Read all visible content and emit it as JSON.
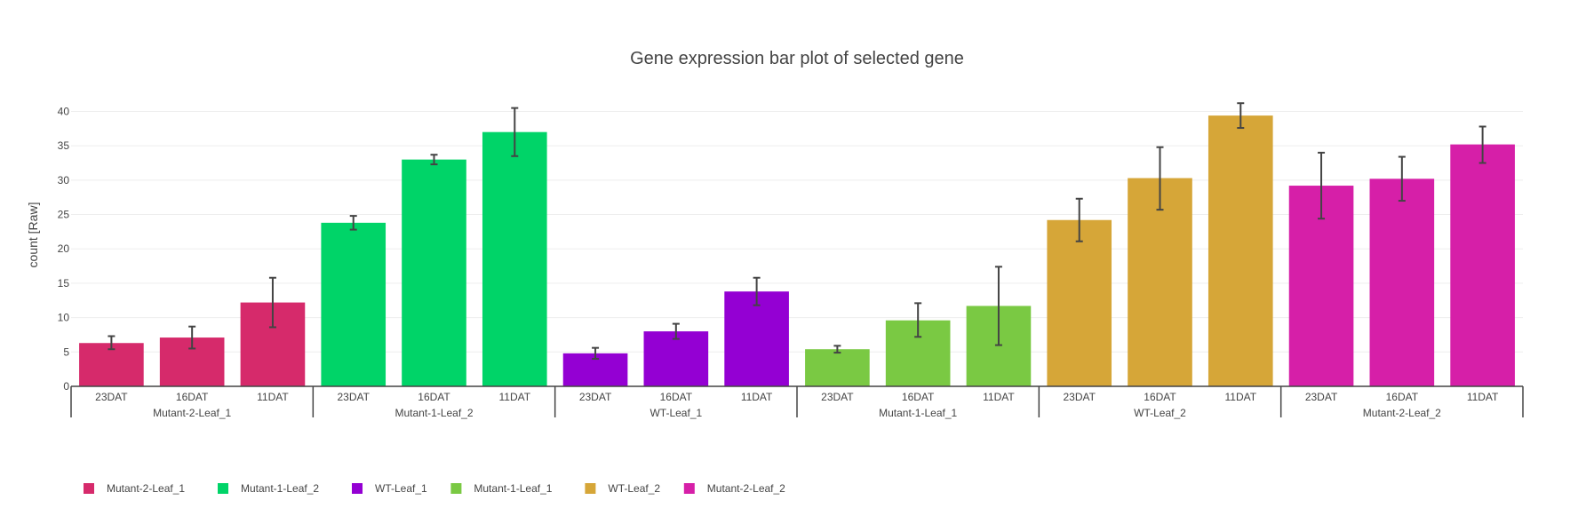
{
  "chart_data": {
    "type": "bar",
    "title": "Gene expression bar plot of selected gene",
    "xlabel": "",
    "ylabel": "count [Raw]",
    "ylim": [
      0,
      42
    ],
    "yticks": [
      0,
      5,
      10,
      15,
      20,
      25,
      30,
      35,
      40
    ],
    "grid": true,
    "legend_position": "bottom-left",
    "series": [
      {
        "name": "Mutant-2-Leaf_1",
        "color": "#d62a6b",
        "categories": [
          "23DAT",
          "16DAT",
          "11DAT"
        ],
        "values": [
          6.3,
          7.1,
          12.2
        ],
        "error_low": [
          5.4,
          5.5,
          8.6
        ],
        "error_high": [
          7.3,
          8.7,
          15.8
        ]
      },
      {
        "name": "Mutant-1-Leaf_2",
        "color": "#00d468",
        "categories": [
          "23DAT",
          "16DAT",
          "11DAT"
        ],
        "values": [
          23.8,
          33.0,
          37.0
        ],
        "error_low": [
          22.8,
          32.3,
          33.5
        ],
        "error_high": [
          24.8,
          33.7,
          40.5
        ]
      },
      {
        "name": "WT-Leaf_1",
        "color": "#9400d3",
        "categories": [
          "23DAT",
          "16DAT",
          "11DAT"
        ],
        "values": [
          4.8,
          8.0,
          13.8
        ],
        "error_low": [
          4.0,
          6.9,
          11.8
        ],
        "error_high": [
          5.6,
          9.1,
          15.8
        ]
      },
      {
        "name": "Mutant-1-Leaf_1",
        "color": "#7ac943",
        "categories": [
          "23DAT",
          "16DAT",
          "11DAT"
        ],
        "values": [
          5.4,
          9.6,
          11.7
        ],
        "error_low": [
          4.9,
          7.2,
          6.0
        ],
        "error_high": [
          5.9,
          12.1,
          17.4
        ]
      },
      {
        "name": "WT-Leaf_2",
        "color": "#d6a638",
        "categories": [
          "23DAT",
          "16DAT",
          "11DAT"
        ],
        "values": [
          24.2,
          30.3,
          39.4
        ],
        "error_low": [
          21.1,
          25.7,
          37.6
        ],
        "error_high": [
          27.3,
          34.8,
          41.2
        ]
      },
      {
        "name": "Mutant-2-Leaf_2",
        "color": "#d61fa8",
        "categories": [
          "23DAT",
          "16DAT",
          "11DAT"
        ],
        "values": [
          29.2,
          30.2,
          35.2
        ],
        "error_low": [
          24.4,
          27.0,
          32.5
        ],
        "error_high": [
          34.0,
          33.4,
          37.8
        ]
      }
    ]
  }
}
